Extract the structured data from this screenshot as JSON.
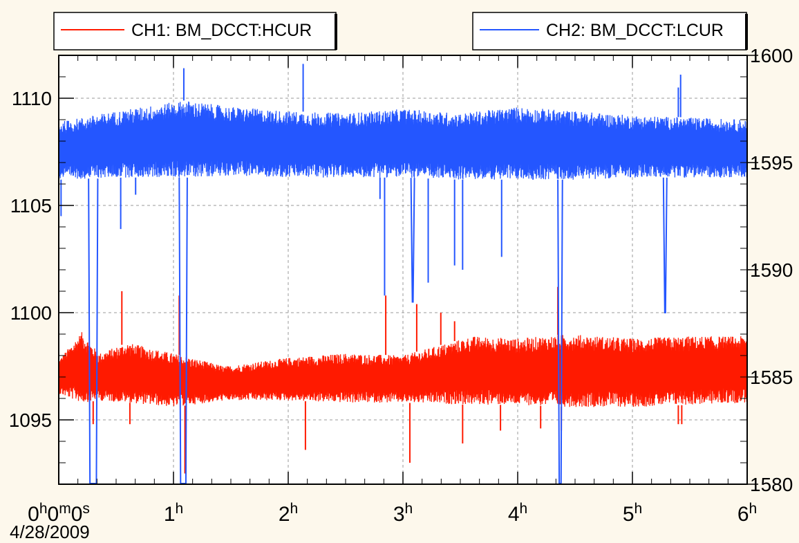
{
  "chart_data": {
    "type": "line",
    "title": "",
    "xlabel": "",
    "ylabel": "",
    "date_label": "4/28/2009",
    "x_unit": "hours",
    "xlim": [
      0,
      6
    ],
    "x_ticks": [
      {
        "value": 0,
        "parts": [
          {
            "t": "0"
          },
          {
            "t": "h",
            "sup": true
          },
          {
            "t": "0"
          },
          {
            "t": "m",
            "sup": true
          },
          {
            "t": "0"
          },
          {
            "t": "s",
            "sup": true
          }
        ]
      },
      {
        "value": 1,
        "parts": [
          {
            "t": "1"
          },
          {
            "t": "h",
            "sup": true
          }
        ]
      },
      {
        "value": 2,
        "parts": [
          {
            "t": "2"
          },
          {
            "t": "h",
            "sup": true
          }
        ]
      },
      {
        "value": 3,
        "parts": [
          {
            "t": "3"
          },
          {
            "t": "h",
            "sup": true
          }
        ]
      },
      {
        "value": 4,
        "parts": [
          {
            "t": "4"
          },
          {
            "t": "h",
            "sup": true
          }
        ]
      },
      {
        "value": 5,
        "parts": [
          {
            "t": "5"
          },
          {
            "t": "h",
            "sup": true
          }
        ]
      },
      {
        "value": 6,
        "parts": [
          {
            "t": "6"
          },
          {
            "t": "h",
            "sup": true
          }
        ]
      }
    ],
    "y_left": {
      "ylim": [
        1092,
        1112
      ],
      "ticks": [
        1095,
        1100,
        1105,
        1110
      ]
    },
    "y_right": {
      "ylim": [
        1580,
        1600
      ],
      "ticks": [
        1580,
        1585,
        1590,
        1595,
        1600
      ]
    },
    "grid": true,
    "legend": [
      {
        "series": 0,
        "placement": "top-left"
      },
      {
        "series": 1,
        "placement": "top-right"
      }
    ],
    "series": [
      {
        "name": "CH1: BM_DCCT:HCUR",
        "color": "#ff1a00",
        "axis": "left",
        "band_low": 1095.8,
        "band_high": 1098.2,
        "profile": [
          {
            "x": 0.0,
            "low": 1096.2,
            "high": 1097.8
          },
          {
            "x": 0.2,
            "low": 1095.8,
            "high": 1099.1
          },
          {
            "x": 0.35,
            "low": 1095.9,
            "high": 1098.1
          },
          {
            "x": 0.6,
            "low": 1095.8,
            "high": 1098.6
          },
          {
            "x": 1.0,
            "low": 1095.6,
            "high": 1098.1
          },
          {
            "x": 1.45,
            "low": 1095.9,
            "high": 1097.5
          },
          {
            "x": 2.0,
            "low": 1095.9,
            "high": 1097.9
          },
          {
            "x": 2.5,
            "low": 1095.8,
            "high": 1098.1
          },
          {
            "x": 3.0,
            "low": 1095.8,
            "high": 1098.0
          },
          {
            "x": 3.6,
            "low": 1095.7,
            "high": 1098.9
          },
          {
            "x": 4.0,
            "low": 1095.7,
            "high": 1098.8
          },
          {
            "x": 4.45,
            "low": 1095.6,
            "high": 1099.0
          },
          {
            "x": 5.0,
            "low": 1095.6,
            "high": 1098.8
          },
          {
            "x": 5.5,
            "low": 1095.7,
            "high": 1098.9
          },
          {
            "x": 6.0,
            "low": 1095.8,
            "high": 1098.9
          }
        ],
        "spikes": [
          {
            "x": 0.55,
            "y": 1101.0
          },
          {
            "x": 0.62,
            "y": 1094.8
          },
          {
            "x": 0.3,
            "y": 1094.8
          },
          {
            "x": 1.05,
            "y": 1100.8
          },
          {
            "x": 1.1,
            "y": 1092.5
          },
          {
            "x": 2.15,
            "y": 1093.6
          },
          {
            "x": 2.85,
            "y": 1100.8
          },
          {
            "x": 3.06,
            "y": 1093.0
          },
          {
            "x": 3.12,
            "y": 1100.4
          },
          {
            "x": 3.33,
            "y": 1100.0
          },
          {
            "x": 3.45,
            "y": 1099.6
          },
          {
            "x": 3.52,
            "y": 1093.9
          },
          {
            "x": 3.85,
            "y": 1094.5
          },
          {
            "x": 4.2,
            "y": 1094.6
          },
          {
            "x": 4.35,
            "y": 1101.2
          },
          {
            "x": 4.38,
            "y": 1094.5
          },
          {
            "x": 5.43,
            "y": 1094.8
          },
          {
            "x": 5.4,
            "y": 1094.8
          }
        ]
      },
      {
        "name": "CH2: BM_DCCT:LCUR",
        "color": "#2456ff",
        "axis": "right",
        "band_low": 1594.2,
        "band_high": 1597.1,
        "profile": [
          {
            "x": 0.0,
            "low": 1594.2,
            "high": 1596.9
          },
          {
            "x": 0.5,
            "low": 1594.3,
            "high": 1597.4
          },
          {
            "x": 1.1,
            "low": 1594.3,
            "high": 1597.9
          },
          {
            "x": 1.5,
            "low": 1594.4,
            "high": 1597.6
          },
          {
            "x": 2.0,
            "low": 1594.3,
            "high": 1597.4
          },
          {
            "x": 2.5,
            "low": 1594.3,
            "high": 1597.3
          },
          {
            "x": 3.0,
            "low": 1594.3,
            "high": 1597.5
          },
          {
            "x": 3.5,
            "low": 1594.2,
            "high": 1597.3
          },
          {
            "x": 4.0,
            "low": 1594.2,
            "high": 1597.6
          },
          {
            "x": 4.5,
            "low": 1594.2,
            "high": 1597.4
          },
          {
            "x": 5.0,
            "low": 1594.3,
            "high": 1597.2
          },
          {
            "x": 5.5,
            "low": 1594.3,
            "high": 1597.1
          },
          {
            "x": 6.0,
            "low": 1594.3,
            "high": 1597.0
          }
        ],
        "spikes": [
          {
            "x": 0.02,
            "y": 1592.5
          },
          {
            "x": 0.54,
            "y": 1591.9
          },
          {
            "x": 0.67,
            "y": 1593.5
          },
          {
            "x": 2.13,
            "y": 1599.6
          },
          {
            "x": 2.8,
            "y": 1593.3
          },
          {
            "x": 2.84,
            "y": 1588.8
          },
          {
            "x": 3.22,
            "y": 1589.4
          },
          {
            "x": 3.45,
            "y": 1590.2
          },
          {
            "x": 3.52,
            "y": 1590.0
          },
          {
            "x": 3.86,
            "y": 1590.6
          },
          {
            "x": 5.42,
            "y": 1599.1
          },
          {
            "x": 5.4,
            "y": 1598.5
          }
        ],
        "dropouts": [
          {
            "start": 0.26,
            "end": 0.34,
            "depth": 1580.0
          },
          {
            "start": 1.05,
            "end": 1.12,
            "depth": 1580.0
          },
          {
            "start": 3.07,
            "end": 3.1,
            "depth": 1588.5
          },
          {
            "start": 4.35,
            "end": 4.39,
            "depth": 1580.0
          },
          {
            "start": 5.27,
            "end": 5.3,
            "depth": 1588.0
          }
        ],
        "peaks": [
          {
            "x": 1.09,
            "y": 1599.4
          }
        ]
      }
    ]
  }
}
